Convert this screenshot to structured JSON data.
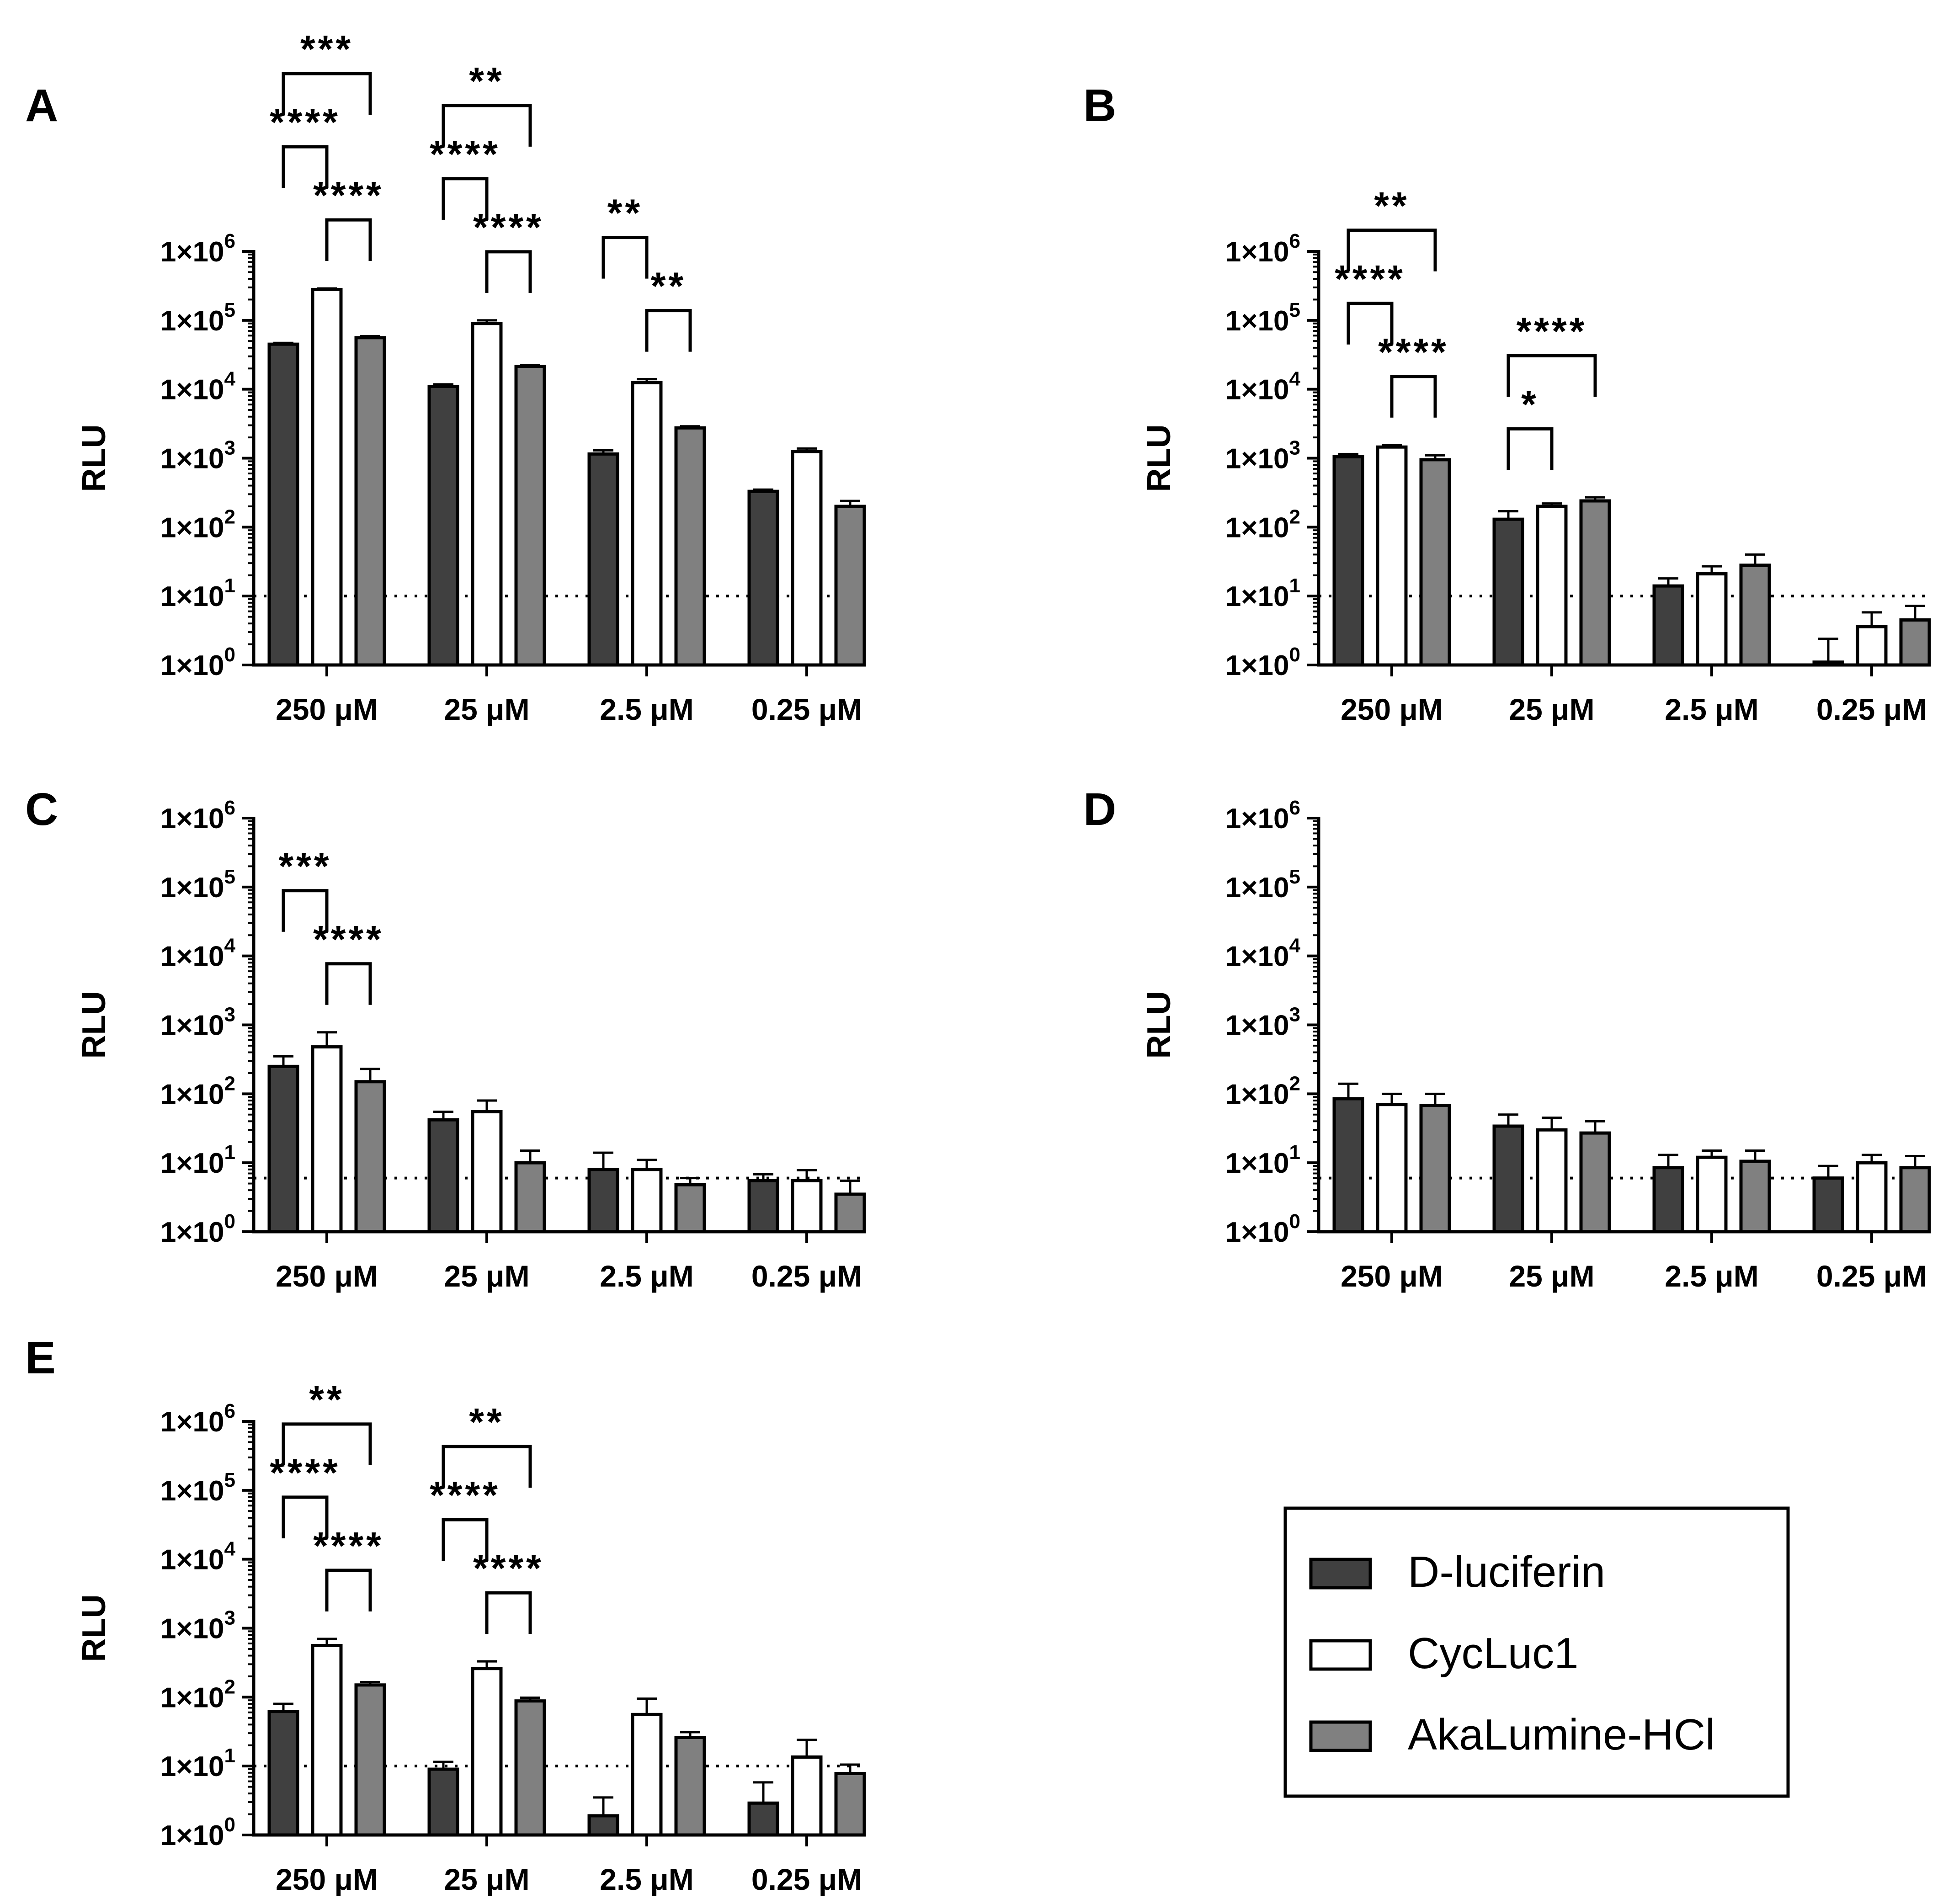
{
  "colors": {
    "D-luciferin": "#404040",
    "CycLuc1": "#ffffff",
    "AkaLumine-HCl": "#808080",
    "axis": "#000000"
  },
  "legend": {
    "items": [
      "D-luciferin",
      "CycLuc1",
      "AkaLumine-HCl"
    ]
  },
  "chart_data": [
    {
      "panel": "A",
      "type": "bar",
      "yscale": "log",
      "ylabel": "RLU",
      "ylim": [
        1,
        1000000
      ],
      "yticks": [
        "1×10^0",
        "1×10^1",
        "1×10^2",
        "1×10^3",
        "1×10^4",
        "1×10^5",
        "1×10^6"
      ],
      "categories": [
        "250 μM",
        "25 μM",
        "2.5 μM",
        "0.25 μM"
      ],
      "threshold": 10,
      "series": [
        {
          "name": "D-luciferin",
          "values": [
            45000,
            11000,
            1150,
            330
          ],
          "errors": [
            47000,
            11800,
            1300,
            350
          ]
        },
        {
          "name": "CycLuc1",
          "values": [
            280000,
            90000,
            12500,
            1250
          ],
          "errors": [
            290000,
            100000,
            14000,
            1380
          ]
        },
        {
          "name": "AkaLumine-HCl",
          "values": [
            56000,
            21500,
            2750,
            200
          ],
          "errors": [
            59000,
            22500,
            2900,
            240
          ]
        }
      ],
      "annotations": [
        {
          "category": 0,
          "from": 0,
          "to": 2,
          "label": "***",
          "level": 3
        },
        {
          "category": 0,
          "from": 0,
          "to": 1,
          "label": "****",
          "level": 2
        },
        {
          "category": 0,
          "from": 1,
          "to": 2,
          "label": "****",
          "level": 1
        },
        {
          "category": 1,
          "from": 0,
          "to": 2,
          "label": "**",
          "level": 3
        },
        {
          "category": 1,
          "from": 0,
          "to": 1,
          "label": "****",
          "level": 2
        },
        {
          "category": 1,
          "from": 1,
          "to": 2,
          "label": "****",
          "level": 1
        },
        {
          "category": 2,
          "from": 0,
          "to": 1,
          "label": "**",
          "level": 2
        },
        {
          "category": 2,
          "from": 1,
          "to": 2,
          "label": "**",
          "level": 1
        }
      ]
    },
    {
      "panel": "B",
      "type": "bar",
      "yscale": "log",
      "ylabel": "RLU",
      "ylim": [
        1,
        1000000
      ],
      "yticks": [
        "1×10^0",
        "1×10^1",
        "1×10^2",
        "1×10^3",
        "1×10^4",
        "1×10^5",
        "1×10^6"
      ],
      "categories": [
        "250 μM",
        "25 μM",
        "2.5 μM",
        "0.25 μM"
      ],
      "threshold": 10,
      "series": [
        {
          "name": "D-luciferin",
          "values": [
            1050,
            130,
            14,
            1.1
          ],
          "errors": [
            1150,
            170,
            18,
            2.4
          ]
        },
        {
          "name": "CycLuc1",
          "values": [
            1450,
            200,
            21,
            3.6
          ],
          "errors": [
            1550,
            220,
            27,
            5.8
          ]
        },
        {
          "name": "AkaLumine-HCl",
          "values": [
            950,
            240,
            28,
            4.5
          ],
          "errors": [
            1100,
            270,
            40,
            7.2
          ]
        }
      ],
      "annotations": [
        {
          "category": 0,
          "from": 0,
          "to": 2,
          "label": "**",
          "level": 3
        },
        {
          "category": 0,
          "from": 0,
          "to": 1,
          "label": "****",
          "level": 2
        },
        {
          "category": 0,
          "from": 1,
          "to": 2,
          "label": "****",
          "level": 1
        },
        {
          "category": 1,
          "from": 0,
          "to": 2,
          "label": "****",
          "level": 2
        },
        {
          "category": 1,
          "from": 0,
          "to": 1,
          "label": "*",
          "level": 1
        }
      ]
    },
    {
      "panel": "C",
      "type": "bar",
      "yscale": "log",
      "ylabel": "RLU",
      "ylim": [
        1,
        1000000
      ],
      "yticks": [
        "1×10^0",
        "1×10^1",
        "1×10^2",
        "1×10^3",
        "1×10^4",
        "1×10^5",
        "1×10^6"
      ],
      "categories": [
        "250 μM",
        "25 μM",
        "2.5 μM",
        "0.25 μM"
      ],
      "threshold": 6,
      "series": [
        {
          "name": "D-luciferin",
          "values": [
            250,
            42,
            8,
            5.5
          ],
          "errors": [
            350,
            55,
            14,
            6.8
          ]
        },
        {
          "name": "CycLuc1",
          "values": [
            480,
            55,
            8,
            5.5
          ],
          "errors": [
            780,
            80,
            11,
            7.8
          ]
        },
        {
          "name": "AkaLumine-HCl",
          "values": [
            150,
            10,
            4.8,
            3.5
          ],
          "errors": [
            230,
            15,
            6,
            5.5
          ]
        }
      ],
      "annotations": [
        {
          "category": 0,
          "from": 0,
          "to": 1,
          "label": "***",
          "level": 2
        },
        {
          "category": 0,
          "from": 1,
          "to": 2,
          "label": "****",
          "level": 1
        }
      ]
    },
    {
      "panel": "D",
      "type": "bar",
      "yscale": "log",
      "ylabel": "RLU",
      "ylim": [
        1,
        1000000
      ],
      "yticks": [
        "1×10^0",
        "1×10^1",
        "1×10^2",
        "1×10^3",
        "1×10^4",
        "1×10^5",
        "1×10^6"
      ],
      "categories": [
        "250 μM",
        "25 μM",
        "2.5 μM",
        "0.25 μM"
      ],
      "threshold": 6,
      "series": [
        {
          "name": "D-luciferin",
          "values": [
            85,
            34,
            8.5,
            6
          ],
          "errors": [
            140,
            50,
            13,
            9
          ]
        },
        {
          "name": "CycLuc1",
          "values": [
            70,
            30,
            12,
            10
          ],
          "errors": [
            100,
            45,
            15,
            13
          ]
        },
        {
          "name": "AkaLumine-HCl",
          "values": [
            68,
            27,
            10.5,
            8.5
          ],
          "errors": [
            100,
            40,
            15,
            12.5
          ]
        }
      ],
      "annotations": []
    },
    {
      "panel": "E",
      "type": "bar",
      "yscale": "log",
      "ylabel": "RLU",
      "ylim": [
        1,
        1000000
      ],
      "yticks": [
        "1×10^0",
        "1×10^1",
        "1×10^2",
        "1×10^3",
        "1×10^4",
        "1×10^5",
        "1×10^6"
      ],
      "categories": [
        "250 μM",
        "25 μM",
        "2.5 μM",
        "0.25 μM"
      ],
      "threshold": 10,
      "series": [
        {
          "name": "D-luciferin",
          "values": [
            62,
            9,
            1.9,
            2.9
          ],
          "errors": [
            80,
            11.5,
            3.5,
            5.8
          ]
        },
        {
          "name": "CycLuc1",
          "values": [
            560,
            260,
            56,
            13.5
          ],
          "errors": [
            700,
            330,
            95,
            24
          ]
        },
        {
          "name": "AkaLumine-HCl",
          "values": [
            150,
            88,
            26,
            7.8
          ],
          "errors": [
            165,
            98,
            31,
            10.5
          ]
        }
      ],
      "annotations": [
        {
          "category": 0,
          "from": 0,
          "to": 2,
          "label": "**",
          "level": 3
        },
        {
          "category": 0,
          "from": 0,
          "to": 1,
          "label": "****",
          "level": 2
        },
        {
          "category": 0,
          "from": 1,
          "to": 2,
          "label": "****",
          "level": 1
        },
        {
          "category": 1,
          "from": 0,
          "to": 2,
          "label": "**",
          "level": 3
        },
        {
          "category": 1,
          "from": 0,
          "to": 1,
          "label": "****",
          "level": 2
        },
        {
          "category": 1,
          "from": 1,
          "to": 2,
          "label": "****",
          "level": 1
        }
      ]
    }
  ]
}
